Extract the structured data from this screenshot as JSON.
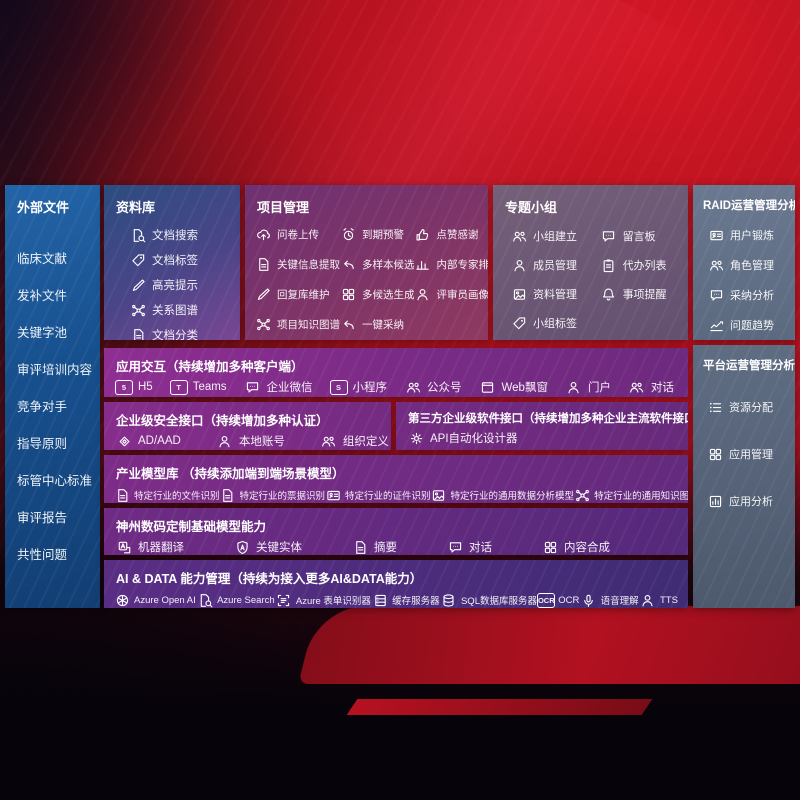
{
  "sidebar": {
    "title": "外部文件",
    "items": [
      {
        "name": "clinical-literature",
        "label": "临床文献"
      },
      {
        "name": "supplement-files",
        "label": "发补文件"
      },
      {
        "name": "keyword-pool",
        "label": "关键字池"
      },
      {
        "name": "review-training-content",
        "label": "审评培训内容"
      },
      {
        "name": "competitors",
        "label": "竞争对手"
      },
      {
        "name": "guidelines",
        "label": "指导原则"
      },
      {
        "name": "standards-center-standards",
        "label": "标管中心标准"
      },
      {
        "name": "review-reports",
        "label": "审评报告"
      },
      {
        "name": "common-issues",
        "label": "共性问题"
      }
    ]
  },
  "panels": {
    "repository": {
      "title": "资料库",
      "items": [
        {
          "name": "doc-search",
          "icon": "doc-search",
          "label": "文档搜索"
        },
        {
          "name": "doc-tags",
          "icon": "tag",
          "label": "文档标签"
        },
        {
          "name": "highlight-tips",
          "icon": "pencil",
          "label": "高亮提示"
        },
        {
          "name": "relation-graph",
          "icon": "network",
          "label": "关系图谱"
        },
        {
          "name": "doc-classify",
          "icon": "doc",
          "label": "文档分类"
        }
      ]
    },
    "project": {
      "title": "项目管理",
      "items": [
        {
          "name": "questionnaire-upload",
          "icon": "cloud-up",
          "label": "问卷上传"
        },
        {
          "name": "expiry-warning",
          "icon": "alarm",
          "label": "到期预警"
        },
        {
          "name": "like-thanks",
          "icon": "thumb",
          "label": "点赞感谢"
        },
        {
          "name": "key-info-extract",
          "icon": "doc",
          "label": "关键信息提取"
        },
        {
          "name": "multi-sample-candidates",
          "icon": "reply",
          "label": "多样本候选"
        },
        {
          "name": "internal-expert-ranking",
          "icon": "bars",
          "label": "内部专家排名"
        },
        {
          "name": "reply-library-maintenance",
          "icon": "pencil",
          "label": "回复库维护"
        },
        {
          "name": "multi-candidate-generation",
          "icon": "grid",
          "label": "多候选生成"
        },
        {
          "name": "reviewer-profile",
          "icon": "person",
          "label": "评审员画像"
        },
        {
          "name": "project-knowledge-graph",
          "icon": "network",
          "label": "项目知识图谱"
        },
        {
          "name": "one-click-adopt",
          "icon": "reply",
          "label": "一键采纳"
        }
      ]
    },
    "groups": {
      "title": "专题小组",
      "items": [
        {
          "name": "group-creation",
          "icon": "people",
          "label": "小组建立"
        },
        {
          "name": "message-board",
          "icon": "chat",
          "label": "留言板"
        },
        {
          "name": "member-management",
          "icon": "person",
          "label": "成员管理"
        },
        {
          "name": "todo-list",
          "icon": "clipboard",
          "label": "代办列表"
        },
        {
          "name": "material-management",
          "icon": "photo",
          "label": "资料管理"
        },
        {
          "name": "matter-reminder",
          "icon": "bell",
          "label": "事项提醒"
        },
        {
          "name": "group-tags",
          "icon": "tag",
          "label": "小组标签"
        }
      ]
    },
    "raid": {
      "title": "RAID运营管理分析",
      "items": [
        {
          "name": "user-training",
          "icon": "idcard",
          "label": "用户锻炼"
        },
        {
          "name": "role-management",
          "icon": "people",
          "label": "角色管理"
        },
        {
          "name": "adoption-analysis",
          "icon": "chat",
          "label": "采纳分析"
        },
        {
          "name": "issue-trends",
          "icon": "trend",
          "label": "问题趋势"
        }
      ]
    },
    "platform": {
      "title": "平台运营管理分析",
      "items": [
        {
          "name": "resource-allocation",
          "icon": "list",
          "label": "资源分配"
        },
        {
          "name": "app-management",
          "icon": "grid",
          "label": "应用管理"
        },
        {
          "name": "app-analysis",
          "icon": "chart-box",
          "label": "应用分析"
        }
      ]
    }
  },
  "rows": {
    "interaction": {
      "title": "应用交互（持续增加多种客户端）",
      "items": [
        {
          "name": "h5",
          "icon": "badge:5",
          "label": "H5"
        },
        {
          "name": "teams",
          "icon": "badge:T",
          "label": "Teams"
        },
        {
          "name": "wecom",
          "icon": "chat",
          "label": "企业微信"
        },
        {
          "name": "miniprogram",
          "icon": "badge:S",
          "label": "小程序"
        },
        {
          "name": "official-account",
          "icon": "people",
          "label": "公众号"
        },
        {
          "name": "web-popup",
          "icon": "window",
          "label": "Web飘窗"
        },
        {
          "name": "portal",
          "icon": "person",
          "label": "门户"
        },
        {
          "name": "dialogue",
          "icon": "people",
          "label": "对话"
        }
      ]
    },
    "security": {
      "title": "企业级安全接口（持续增加多种认证）",
      "items": [
        {
          "name": "ad-aad",
          "icon": "diamond",
          "label": "AD/AAD"
        },
        {
          "name": "local-account",
          "icon": "person",
          "label": "本地账号"
        },
        {
          "name": "org-definition",
          "icon": "people",
          "label": "组织定义"
        }
      ]
    },
    "thirdparty": {
      "title": "第三方企业级软件接口（持续增加多种企业主流软件接口）",
      "items": [
        {
          "name": "api-auto-designer",
          "icon": "gear",
          "label": "API自动化设计器"
        }
      ]
    },
    "industry": {
      "title": "产业模型库 （持续添加端到端场景模型）",
      "items": [
        {
          "name": "industry-file-recognition",
          "icon": "doc",
          "label": "特定行业的文件识别"
        },
        {
          "name": "industry-bill-recognition",
          "icon": "doc",
          "label": "特定行业的票据识别"
        },
        {
          "name": "industry-id-recognition",
          "icon": "idcard",
          "label": "特定行业的证件识别"
        },
        {
          "name": "industry-data-analysis-model",
          "icon": "photo",
          "label": "特定行业的通用数据分析模型"
        },
        {
          "name": "industry-knowledge-graph-model",
          "icon": "network",
          "label": "特定行业的通用知识图谱模型"
        }
      ]
    },
    "base": {
      "title": "神州数码定制基础模型能力",
      "items": [
        {
          "name": "machine-translation",
          "icon": "translate",
          "label": "机器翻译"
        },
        {
          "name": "key-entities",
          "icon": "shield-a",
          "label": "关键实体"
        },
        {
          "name": "summary",
          "icon": "doc",
          "label": "摘要"
        },
        {
          "name": "dialogue-model",
          "icon": "chat",
          "label": "对话"
        },
        {
          "name": "content-synthesis",
          "icon": "grid",
          "label": "内容合成"
        }
      ]
    },
    "ai": {
      "title": "AI & DATA 能力管理（持续为接入更多AI&DATA能力）",
      "items": [
        {
          "name": "azure-openai",
          "icon": "openai",
          "label": "Azure Open AI"
        },
        {
          "name": "azure-search",
          "icon": "doc-search",
          "label": "Azure Search"
        },
        {
          "name": "azure-form-recognizer",
          "icon": "scan-doc",
          "label": "Azure 表单识别器"
        },
        {
          "name": "cache-server",
          "icon": "server",
          "label": "缓存服务器"
        },
        {
          "name": "sql-db-server",
          "icon": "db",
          "label": "SQL数据库服务器"
        },
        {
          "name": "ocr",
          "icon": "badge:OCR",
          "label": "OCR"
        },
        {
          "name": "voice-understanding",
          "icon": "mic",
          "label": "语音理解"
        },
        {
          "name": "tts",
          "icon": "person",
          "label": "TTS"
        }
      ]
    }
  }
}
